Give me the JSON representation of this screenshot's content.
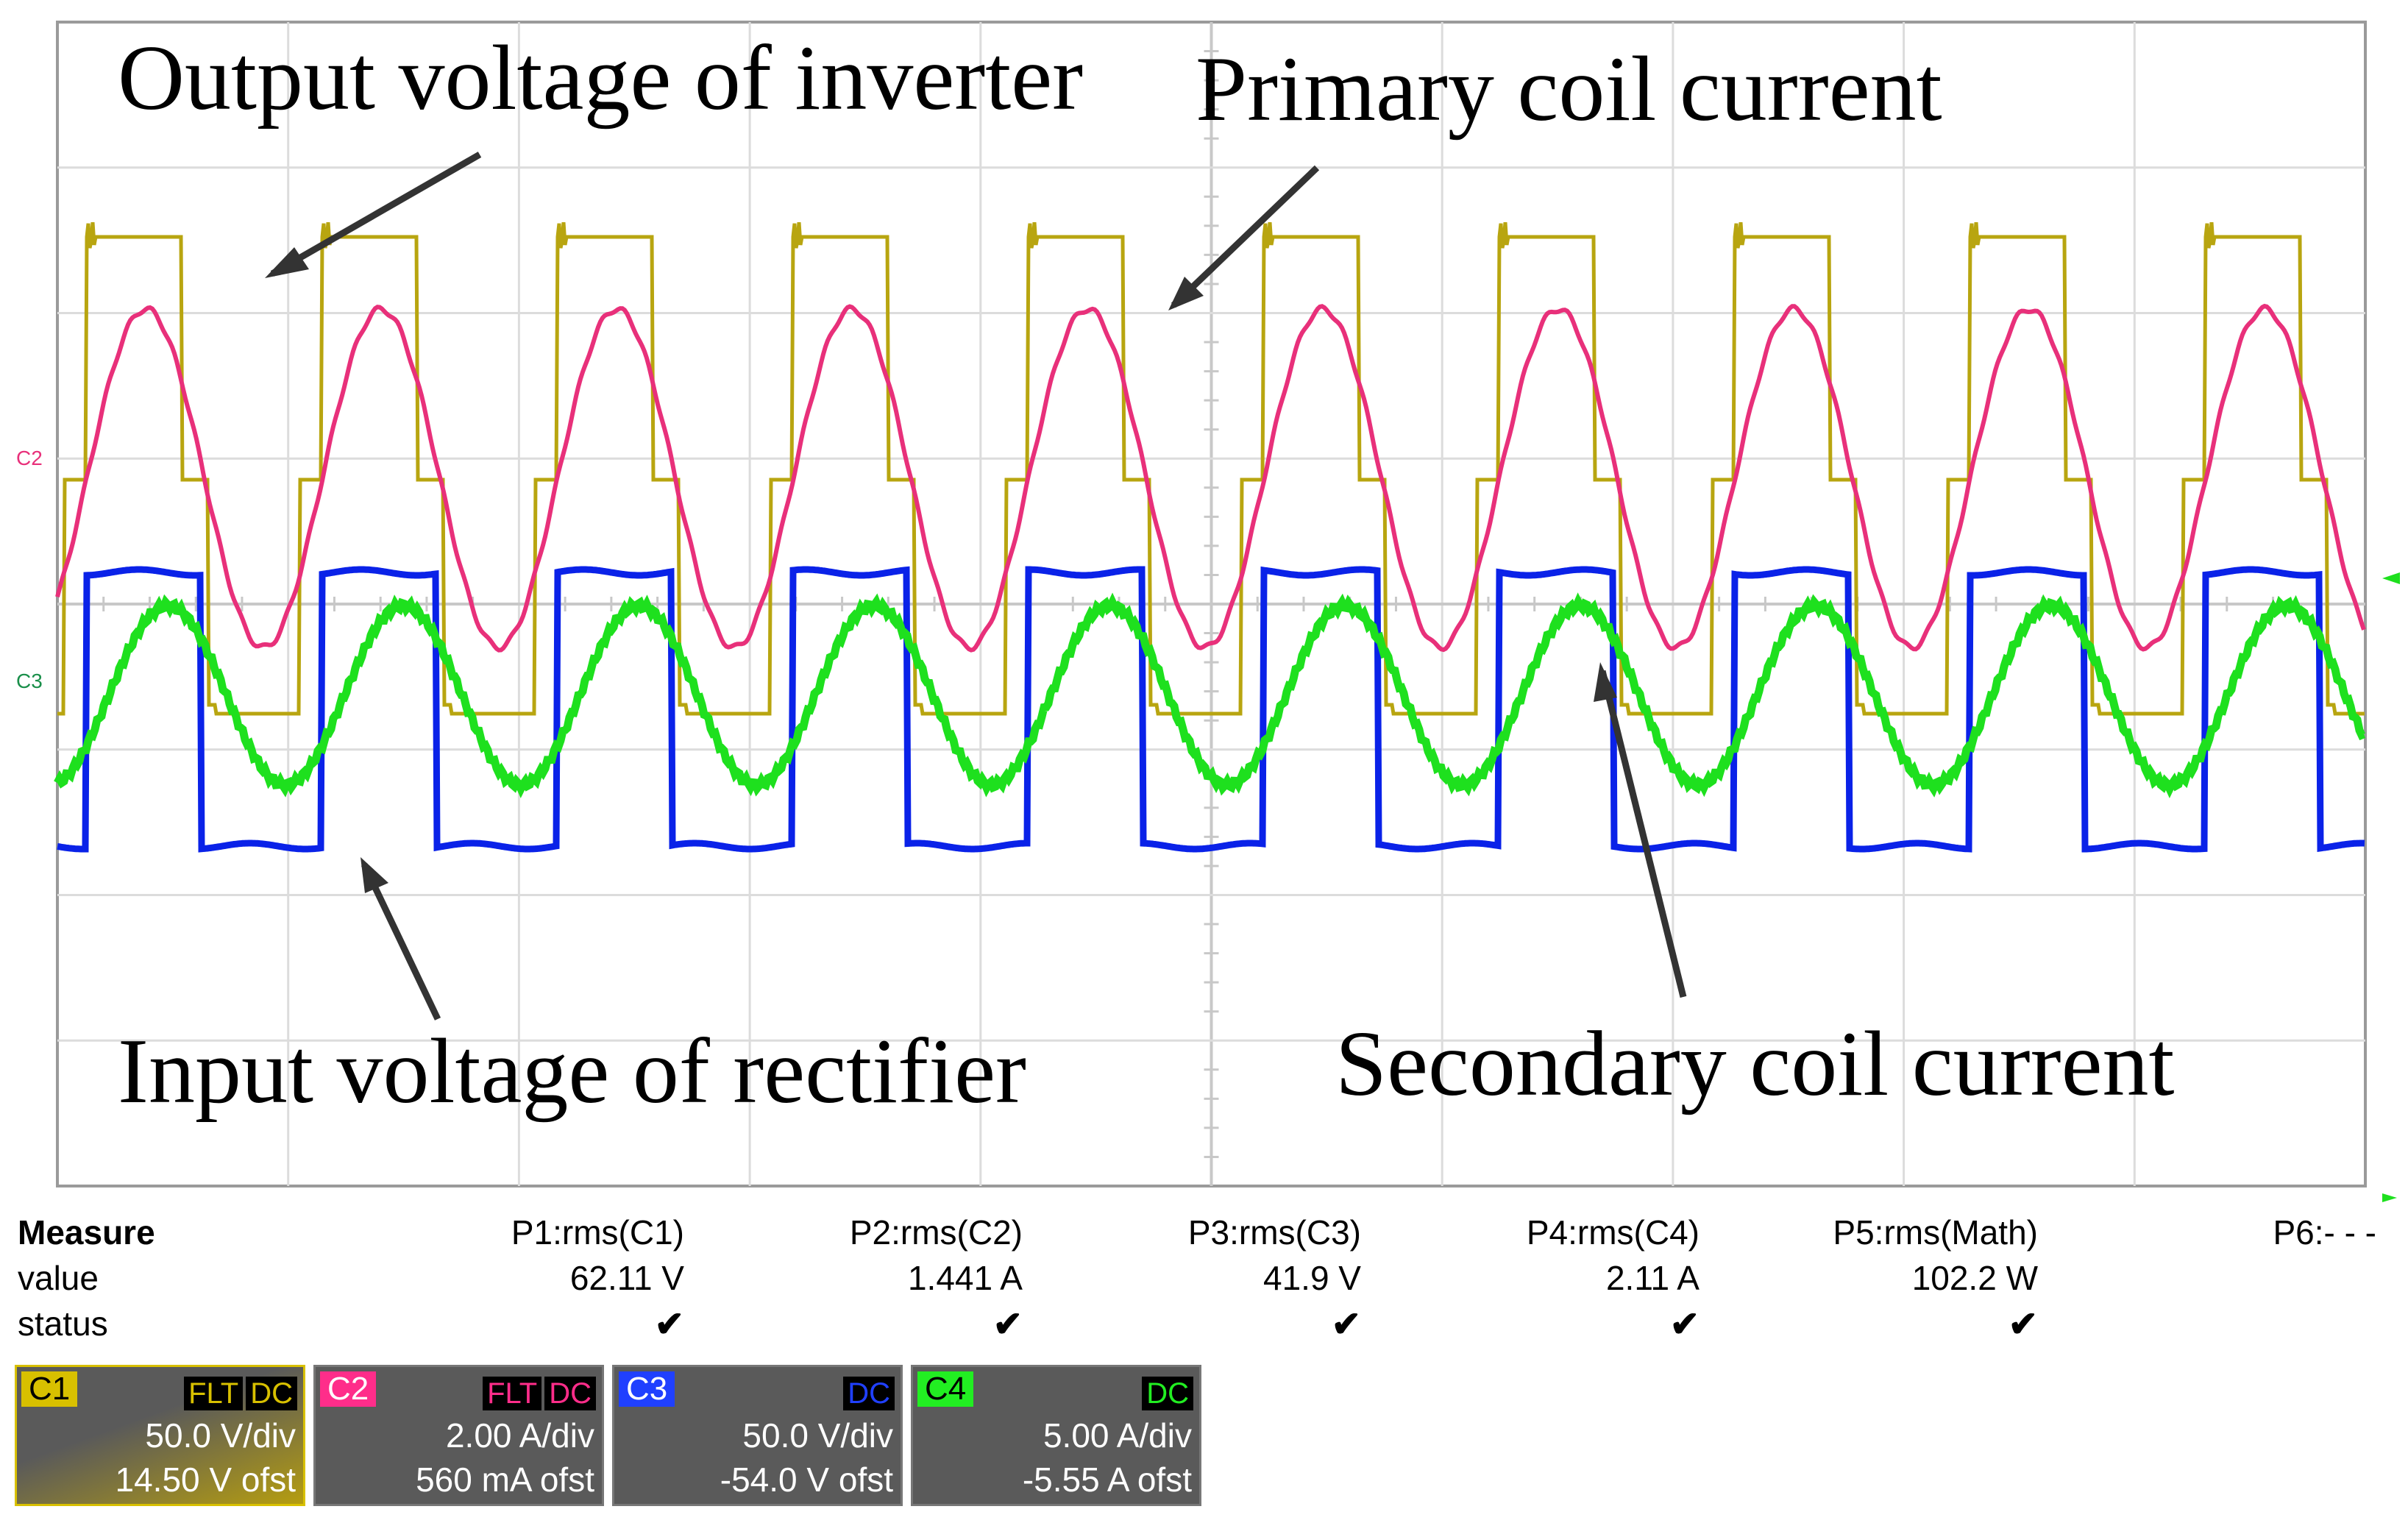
{
  "scope": {
    "annotations": {
      "inverter": "Output voltage of inverter",
      "primary": "Primary coil current",
      "rectifier": "Input voltage of rectifier",
      "secondary": "Secondary coil current"
    },
    "channel_markers": {
      "c2": "C2",
      "c3": "C3"
    },
    "colors": {
      "c1": "#b8a510",
      "c2": "#e8307a",
      "c3": "#0a22e8",
      "c4": "#1ee01e"
    }
  },
  "measure": {
    "title": "Measure",
    "row_value": "value",
    "row_status": "status",
    "columns": [
      {
        "param": "P1:rms(C1)",
        "value": "62.11 V",
        "status": "✔"
      },
      {
        "param": "P2:rms(C2)",
        "value": "1.441 A",
        "status": "✔"
      },
      {
        "param": "P3:rms(C3)",
        "value": "41.9 V",
        "status": "✔"
      },
      {
        "param": "P4:rms(C4)",
        "value": "2.11 A",
        "status": "✔"
      },
      {
        "param": "P5:rms(Math)",
        "value": "102.2 W",
        "status": "✔"
      },
      {
        "param": "P6:- - -",
        "value": "",
        "status": ""
      }
    ]
  },
  "channels": [
    {
      "name": "C1",
      "flt": "FLT",
      "coupling": "DC",
      "vdiv": "50.0 V/div",
      "ofst": "14.50 V ofst",
      "color": "#d8c000"
    },
    {
      "name": "C2",
      "flt": "FLT",
      "coupling": "DC",
      "vdiv": "2.00 A/div",
      "ofst": "560 mA ofst",
      "color": "#ff2d8a"
    },
    {
      "name": "C3",
      "flt": "",
      "coupling": "DC",
      "vdiv": "50.0 V/div",
      "ofst": "-54.0 V ofst",
      "color": "#2040ff"
    },
    {
      "name": "C4",
      "flt": "",
      "coupling": "DC",
      "vdiv": "5.00 A/div",
      "ofst": "-5.55 A ofst",
      "color": "#22ee22"
    }
  ]
}
